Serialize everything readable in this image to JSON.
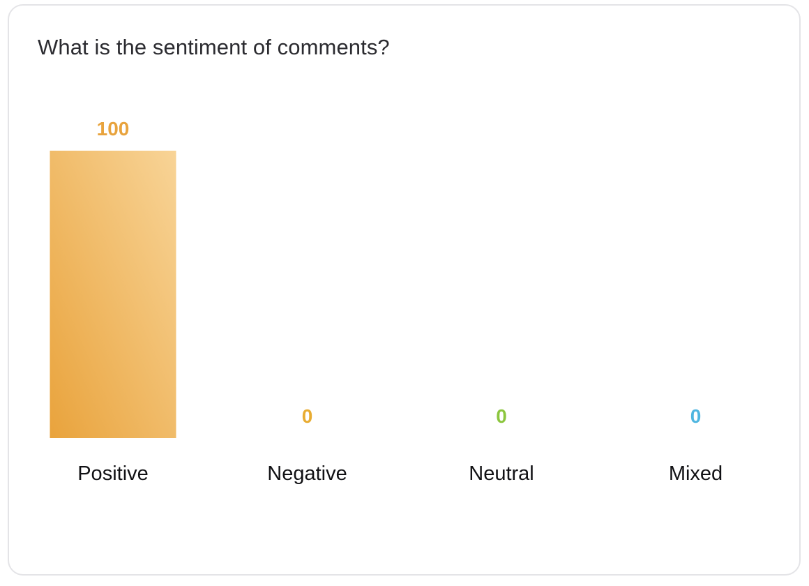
{
  "card": {
    "title": "What is the sentiment of comments?"
  },
  "chart_data": {
    "type": "bar",
    "title": "What is the sentiment of comments?",
    "categories": [
      "Positive",
      "Negative",
      "Neutral",
      "Mixed"
    ],
    "values": [
      100,
      0,
      0,
      0
    ],
    "value_labels": [
      "100",
      "0",
      "0",
      "0"
    ],
    "value_label_colors": [
      "#e8a33d",
      "#e8ac32",
      "#8cc63f",
      "#4fb6e0"
    ],
    "bar_gradient": [
      "#e9a33c",
      "#f8d497"
    ],
    "ylim": [
      0,
      100
    ],
    "grid": false,
    "legend": "none",
    "xlabel": "",
    "ylabel": ""
  }
}
